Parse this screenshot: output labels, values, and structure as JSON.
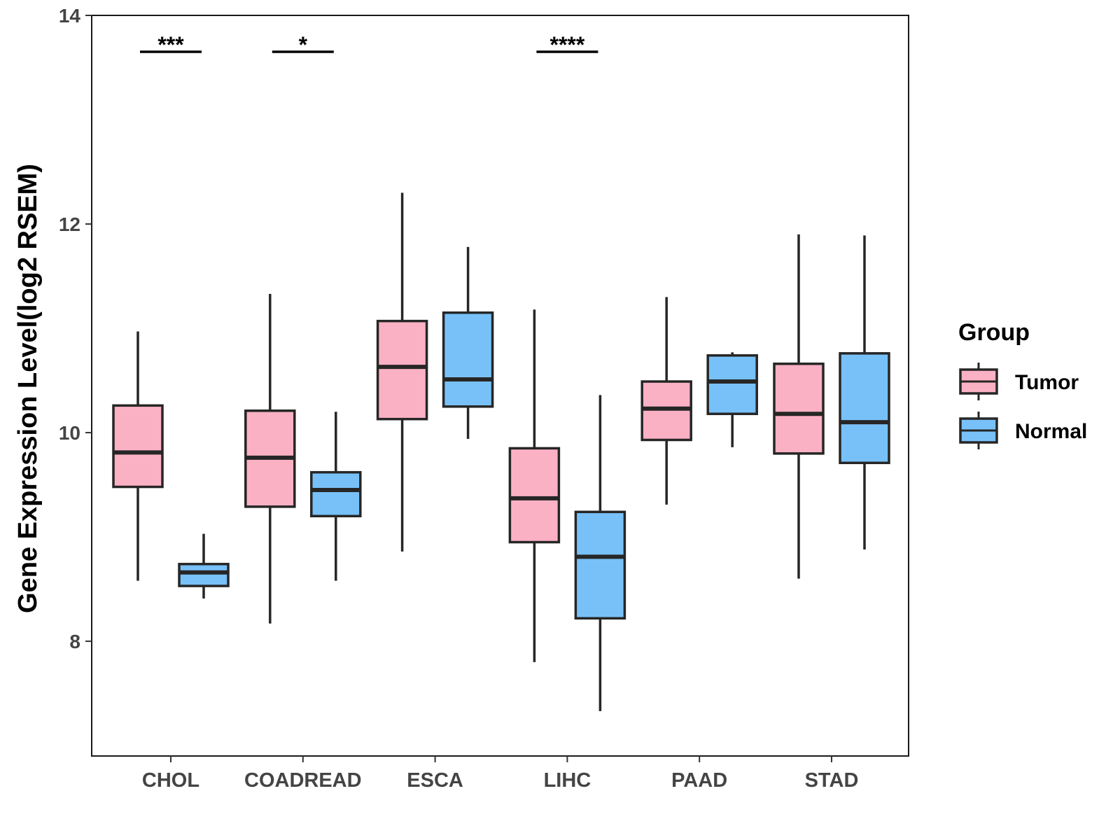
{
  "chart_data": {
    "type": "boxplot",
    "ylabel": "Gene Expression Level(log2 RSEM)",
    "xlabel": "",
    "ylim": [
      6.9,
      14.0
    ],
    "yticks": [
      8,
      10,
      12,
      14
    ],
    "categories": [
      "CHOL",
      "COADREAD",
      "ESCA",
      "LIHC",
      "PAAD",
      "STAD"
    ],
    "groups": [
      {
        "name": "Tumor",
        "color": "#FBB1C4"
      },
      {
        "name": "Normal",
        "color": "#78C1F8"
      }
    ],
    "legend": {
      "title": "Group",
      "position": "right"
    },
    "series": [
      {
        "name": "Tumor",
        "boxes": [
          {
            "category": "CHOL",
            "min": 8.58,
            "q1": 9.48,
            "median": 9.81,
            "q3": 10.26,
            "max": 10.97
          },
          {
            "category": "COADREAD",
            "min": 8.17,
            "q1": 9.29,
            "median": 9.76,
            "q3": 10.21,
            "max": 11.33
          },
          {
            "category": "ESCA",
            "min": 8.86,
            "q1": 10.13,
            "median": 10.63,
            "q3": 11.07,
            "max": 12.3
          },
          {
            "category": "LIHC",
            "min": 7.8,
            "q1": 8.95,
            "median": 9.37,
            "q3": 9.85,
            "max": 11.18
          },
          {
            "category": "PAAD",
            "min": 9.31,
            "q1": 9.93,
            "median": 10.23,
            "q3": 10.49,
            "max": 11.3
          },
          {
            "category": "STAD",
            "min": 8.6,
            "q1": 9.8,
            "median": 10.18,
            "q3": 10.66,
            "max": 11.9
          }
        ]
      },
      {
        "name": "Normal",
        "boxes": [
          {
            "category": "CHOL",
            "min": 8.41,
            "q1": 8.53,
            "median": 8.66,
            "q3": 8.74,
            "max": 9.03
          },
          {
            "category": "COADREAD",
            "min": 8.58,
            "q1": 9.2,
            "median": 9.45,
            "q3": 9.62,
            "max": 10.2
          },
          {
            "category": "ESCA",
            "min": 9.94,
            "q1": 10.25,
            "median": 10.51,
            "q3": 11.15,
            "max": 11.78
          },
          {
            "category": "LIHC",
            "min": 7.33,
            "q1": 8.22,
            "median": 8.81,
            "q3": 9.24,
            "max": 10.36
          },
          {
            "category": "PAAD",
            "min": 9.86,
            "q1": 10.18,
            "median": 10.49,
            "q3": 10.74,
            "max": 10.77
          },
          {
            "category": "STAD",
            "min": 8.88,
            "q1": 9.71,
            "median": 10.1,
            "q3": 10.76,
            "max": 11.89
          }
        ]
      }
    ],
    "significance": [
      {
        "category": "CHOL",
        "label": "***"
      },
      {
        "category": "COADREAD",
        "label": "*"
      },
      {
        "category": "LIHC",
        "label": "****"
      }
    ]
  }
}
